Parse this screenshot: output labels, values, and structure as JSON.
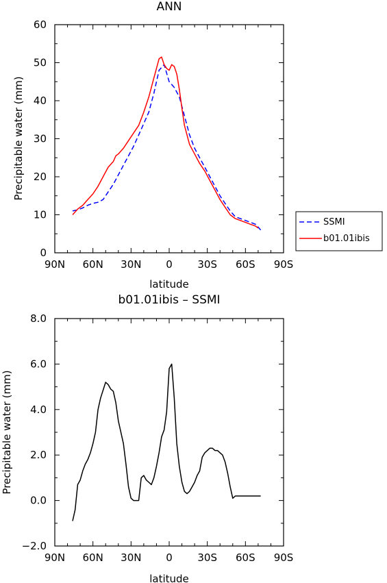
{
  "chart_data": [
    {
      "type": "line",
      "title": "ANN",
      "xlabel": "latitude",
      "ylabel": "Precipitable water (mm)",
      "xlim": [
        -90,
        90
      ],
      "ylim": [
        0,
        60
      ],
      "xticks": [
        -90,
        -60,
        -30,
        0,
        30,
        60,
        90
      ],
      "xtick_labels": [
        "90N",
        "60N",
        "30N",
        "0",
        "30S",
        "60S",
        "90S"
      ],
      "yticks": [
        0,
        10,
        20,
        30,
        40,
        50,
        60
      ],
      "ytick_labels": [
        "0",
        "10",
        "20",
        "30",
        "40",
        "50",
        "60"
      ],
      "legend_position": "right",
      "grid": false,
      "series": [
        {
          "name": "SSMI",
          "color": "#0000ff",
          "dash": "dashed",
          "x": [
            -76,
            -72,
            -68,
            -64,
            -60,
            -56,
            -52,
            -48,
            -44,
            -40,
            -36,
            -32,
            -28,
            -24,
            -20,
            -16,
            -12,
            -8,
            -4,
            0,
            4,
            8,
            12,
            16,
            20,
            24,
            28,
            32,
            36,
            40,
            44,
            48,
            52,
            56,
            60,
            64,
            68,
            72
          ],
          "y": [
            11.0,
            11.3,
            11.8,
            12.5,
            13.0,
            13.3,
            14.0,
            16.0,
            18.0,
            20.5,
            23.0,
            25.5,
            28.0,
            31.0,
            34.0,
            37.0,
            42.0,
            48.0,
            49.5,
            45.0,
            43.5,
            41.0,
            36.0,
            31.0,
            27.5,
            25.0,
            22.5,
            20.0,
            17.5,
            15.0,
            13.0,
            11.0,
            9.5,
            9.0,
            8.5,
            8.0,
            7.5,
            6.0
          ]
        },
        {
          "name": "b01.01ibis",
          "color": "#ff0000",
          "dash": "solid",
          "x": [
            -76,
            -72,
            -68,
            -64,
            -60,
            -56,
            -52,
            -48,
            -44,
            -42,
            -40,
            -36,
            -32,
            -28,
            -24,
            -20,
            -16,
            -12,
            -8,
            -6,
            -4,
            -2,
            0,
            2,
            4,
            6,
            8,
            10,
            12,
            16,
            20,
            24,
            28,
            32,
            36,
            40,
            44,
            48,
            52,
            56,
            60,
            64,
            68,
            70
          ],
          "y": [
            10.0,
            11.5,
            12.5,
            14.0,
            15.5,
            17.5,
            20.0,
            22.5,
            24.0,
            25.5,
            26.0,
            27.5,
            29.5,
            31.5,
            33.5,
            37.0,
            41.0,
            46.0,
            51.0,
            51.5,
            49.5,
            48.5,
            48.0,
            49.5,
            49.0,
            47.0,
            43.0,
            38.0,
            33.5,
            28.5,
            26.0,
            23.5,
            21.5,
            19.0,
            16.5,
            14.0,
            12.0,
            10.0,
            9.0,
            8.5,
            8.0,
            7.5,
            7.0,
            6.5
          ]
        }
      ]
    },
    {
      "type": "line",
      "title": "b01.01ibis – SSMI",
      "xlabel": "latitude",
      "ylabel": "Precipitable water (mm)",
      "xlim": [
        -90,
        90
      ],
      "ylim": [
        -2,
        8
      ],
      "xticks": [
        -90,
        -60,
        -30,
        0,
        30,
        60,
        90
      ],
      "xtick_labels": [
        "90N",
        "60N",
        "30N",
        "0",
        "30S",
        "60S",
        "90S"
      ],
      "yticks": [
        -2,
        0,
        2,
        4,
        6,
        8
      ],
      "ytick_labels": [
        "−2.0",
        "0.0",
        "2.0",
        "4.0",
        "6.0",
        "8.0"
      ],
      "grid": false,
      "series": [
        {
          "color": "#000000",
          "dash": "solid",
          "x": [
            -76,
            -74,
            -72,
            -70,
            -68,
            -66,
            -64,
            -62,
            -60,
            -58,
            -56,
            -54,
            -50,
            -48,
            -46,
            -44,
            -42,
            -40,
            -38,
            -36,
            -34,
            -32,
            -30,
            -28,
            -24,
            -22,
            -20,
            -18,
            -16,
            -14,
            -12,
            -10,
            -8,
            -6,
            -4,
            -2,
            0,
            2,
            4,
            6,
            8,
            10,
            12,
            14,
            16,
            18,
            20,
            22,
            24,
            26,
            28,
            30,
            32,
            34,
            36,
            38,
            40,
            42,
            44,
            46,
            48,
            50,
            52,
            54,
            56,
            58,
            60,
            62,
            64,
            66,
            68,
            70,
            72
          ],
          "y": [
            -0.9,
            -0.4,
            0.7,
            0.9,
            1.3,
            1.6,
            1.8,
            2.1,
            2.5,
            3.0,
            4.0,
            4.5,
            5.2,
            5.1,
            4.9,
            4.8,
            4.3,
            3.5,
            3.0,
            2.5,
            1.6,
            0.6,
            0.1,
            0.0,
            0.0,
            1.0,
            1.1,
            0.9,
            0.8,
            0.7,
            1.0,
            1.5,
            2.1,
            2.8,
            3.1,
            3.9,
            5.8,
            6.0,
            4.5,
            2.5,
            1.5,
            0.8,
            0.4,
            0.3,
            0.4,
            0.6,
            0.8,
            1.1,
            1.3,
            1.9,
            2.1,
            2.2,
            2.3,
            2.3,
            2.2,
            2.2,
            2.1,
            2.0,
            1.7,
            1.2,
            0.6,
            0.1,
            0.2,
            0.2,
            0.2,
            0.2,
            0.2,
            0.2,
            0.2,
            0.2,
            0.2,
            0.2,
            0.2
          ]
        }
      ]
    }
  ]
}
